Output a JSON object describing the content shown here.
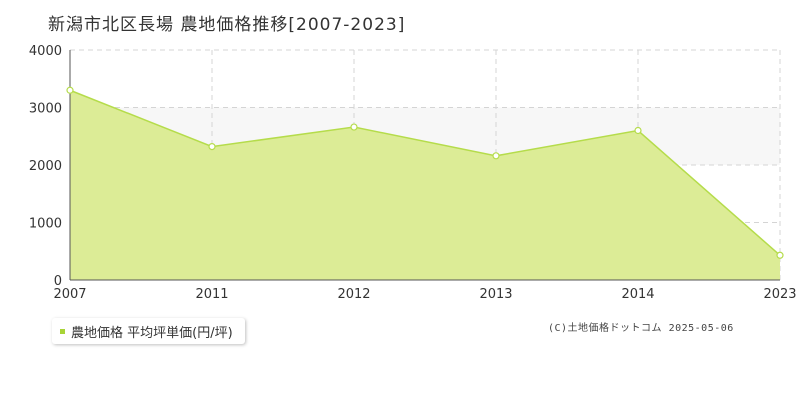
{
  "title": "新潟市北区長場  農地価格推移[2007-2023]",
  "credit": "(C)土地価格ドットコム 2025-05-06",
  "colors": {
    "fill": "#dcec96",
    "line": "#b5dc4b",
    "marker_stroke": "#b5dc4b",
    "band": "#f7f7f7",
    "grid": "#d4d4d4",
    "axis": "#555555",
    "legend_swatch": "#a8d436"
  },
  "chart_data": {
    "type": "area",
    "title": "新潟市北区長場  農地価格推移[2007-2023]",
    "xlabel": "",
    "ylabel": "",
    "categories": [
      "2007",
      "2011",
      "2012",
      "2013",
      "2014",
      "2023"
    ],
    "series": [
      {
        "name": "農地価格 平均坪単価(円/坪)",
        "values": [
          3300,
          2320,
          2660,
          2160,
          2600,
          430
        ]
      }
    ],
    "y_ticks": [
      "0",
      "1000",
      "2000",
      "3000",
      "4000"
    ],
    "ylim": [
      0,
      4000
    ],
    "grid": true,
    "legend": "bottom-left"
  }
}
